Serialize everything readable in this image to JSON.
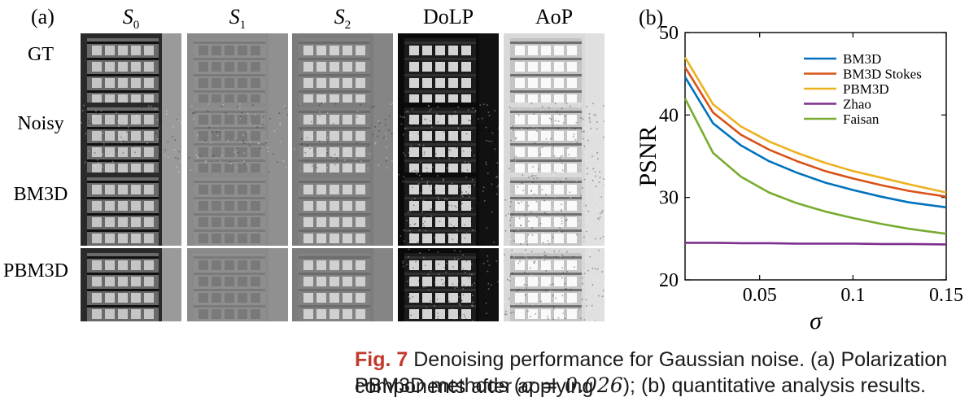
{
  "panel_a": {
    "label": "(a)",
    "columns": [
      {
        "base": "S",
        "sub": "0"
      },
      {
        "base": "S",
        "sub": "1"
      },
      {
        "base": "S",
        "sub": "2"
      },
      {
        "base": "DoLP",
        "sub": ""
      },
      {
        "base": "AoP",
        "sub": ""
      }
    ],
    "rows": [
      "GT",
      "Noisy",
      "BM3D",
      "PBM3D"
    ]
  },
  "panel_b": {
    "label": "(b)"
  },
  "chart_data": {
    "type": "line",
    "title": "",
    "xlabel": "σ",
    "ylabel": "PSNR",
    "xlim": [
      0.01,
      0.15
    ],
    "ylim": [
      20,
      50
    ],
    "xticks": [
      0.05,
      0.1,
      0.15
    ],
    "xtick_labels": [
      "0.05",
      "0.1",
      "0.15"
    ],
    "yticks": [
      20,
      30,
      40,
      50
    ],
    "ytick_labels": [
      "20",
      "30",
      "40",
      "50"
    ],
    "grid": false,
    "legend_position": "top-right",
    "x": [
      0.01,
      0.025,
      0.04,
      0.055,
      0.07,
      0.085,
      0.1,
      0.115,
      0.13,
      0.15
    ],
    "series": [
      {
        "name": "BM3D",
        "color": "#0072bd",
        "values": [
          44.6,
          39.0,
          36.3,
          34.4,
          33.0,
          31.8,
          30.9,
          30.1,
          29.4,
          28.8
        ]
      },
      {
        "name": "BM3D Stokes",
        "color": "#d95319",
        "values": [
          45.8,
          40.3,
          37.6,
          35.8,
          34.4,
          33.2,
          32.3,
          31.5,
          30.8,
          30.1
        ]
      },
      {
        "name": "PBM3D",
        "color": "#edb120",
        "values": [
          47.0,
          41.3,
          38.6,
          36.8,
          35.4,
          34.2,
          33.2,
          32.4,
          31.6,
          30.6
        ]
      },
      {
        "name": "Zhao",
        "color": "#7e2f8e",
        "values": [
          24.5,
          24.5,
          24.45,
          24.45,
          24.4,
          24.4,
          24.4,
          24.35,
          24.35,
          24.3
        ]
      },
      {
        "name": "Faisan",
        "color": "#77ac30",
        "values": [
          42.0,
          35.4,
          32.5,
          30.6,
          29.3,
          28.3,
          27.5,
          26.8,
          26.2,
          25.6
        ]
      }
    ]
  },
  "caption": {
    "head": "Fig. 7",
    "line1": "Denoising performance for Gaussian noise. (a) Polarization components after applying",
    "line2_pre": "PBM3D methods (",
    "sigma": "σ = 0.026",
    "line2_post": "); (b) quantitative analysis results."
  }
}
